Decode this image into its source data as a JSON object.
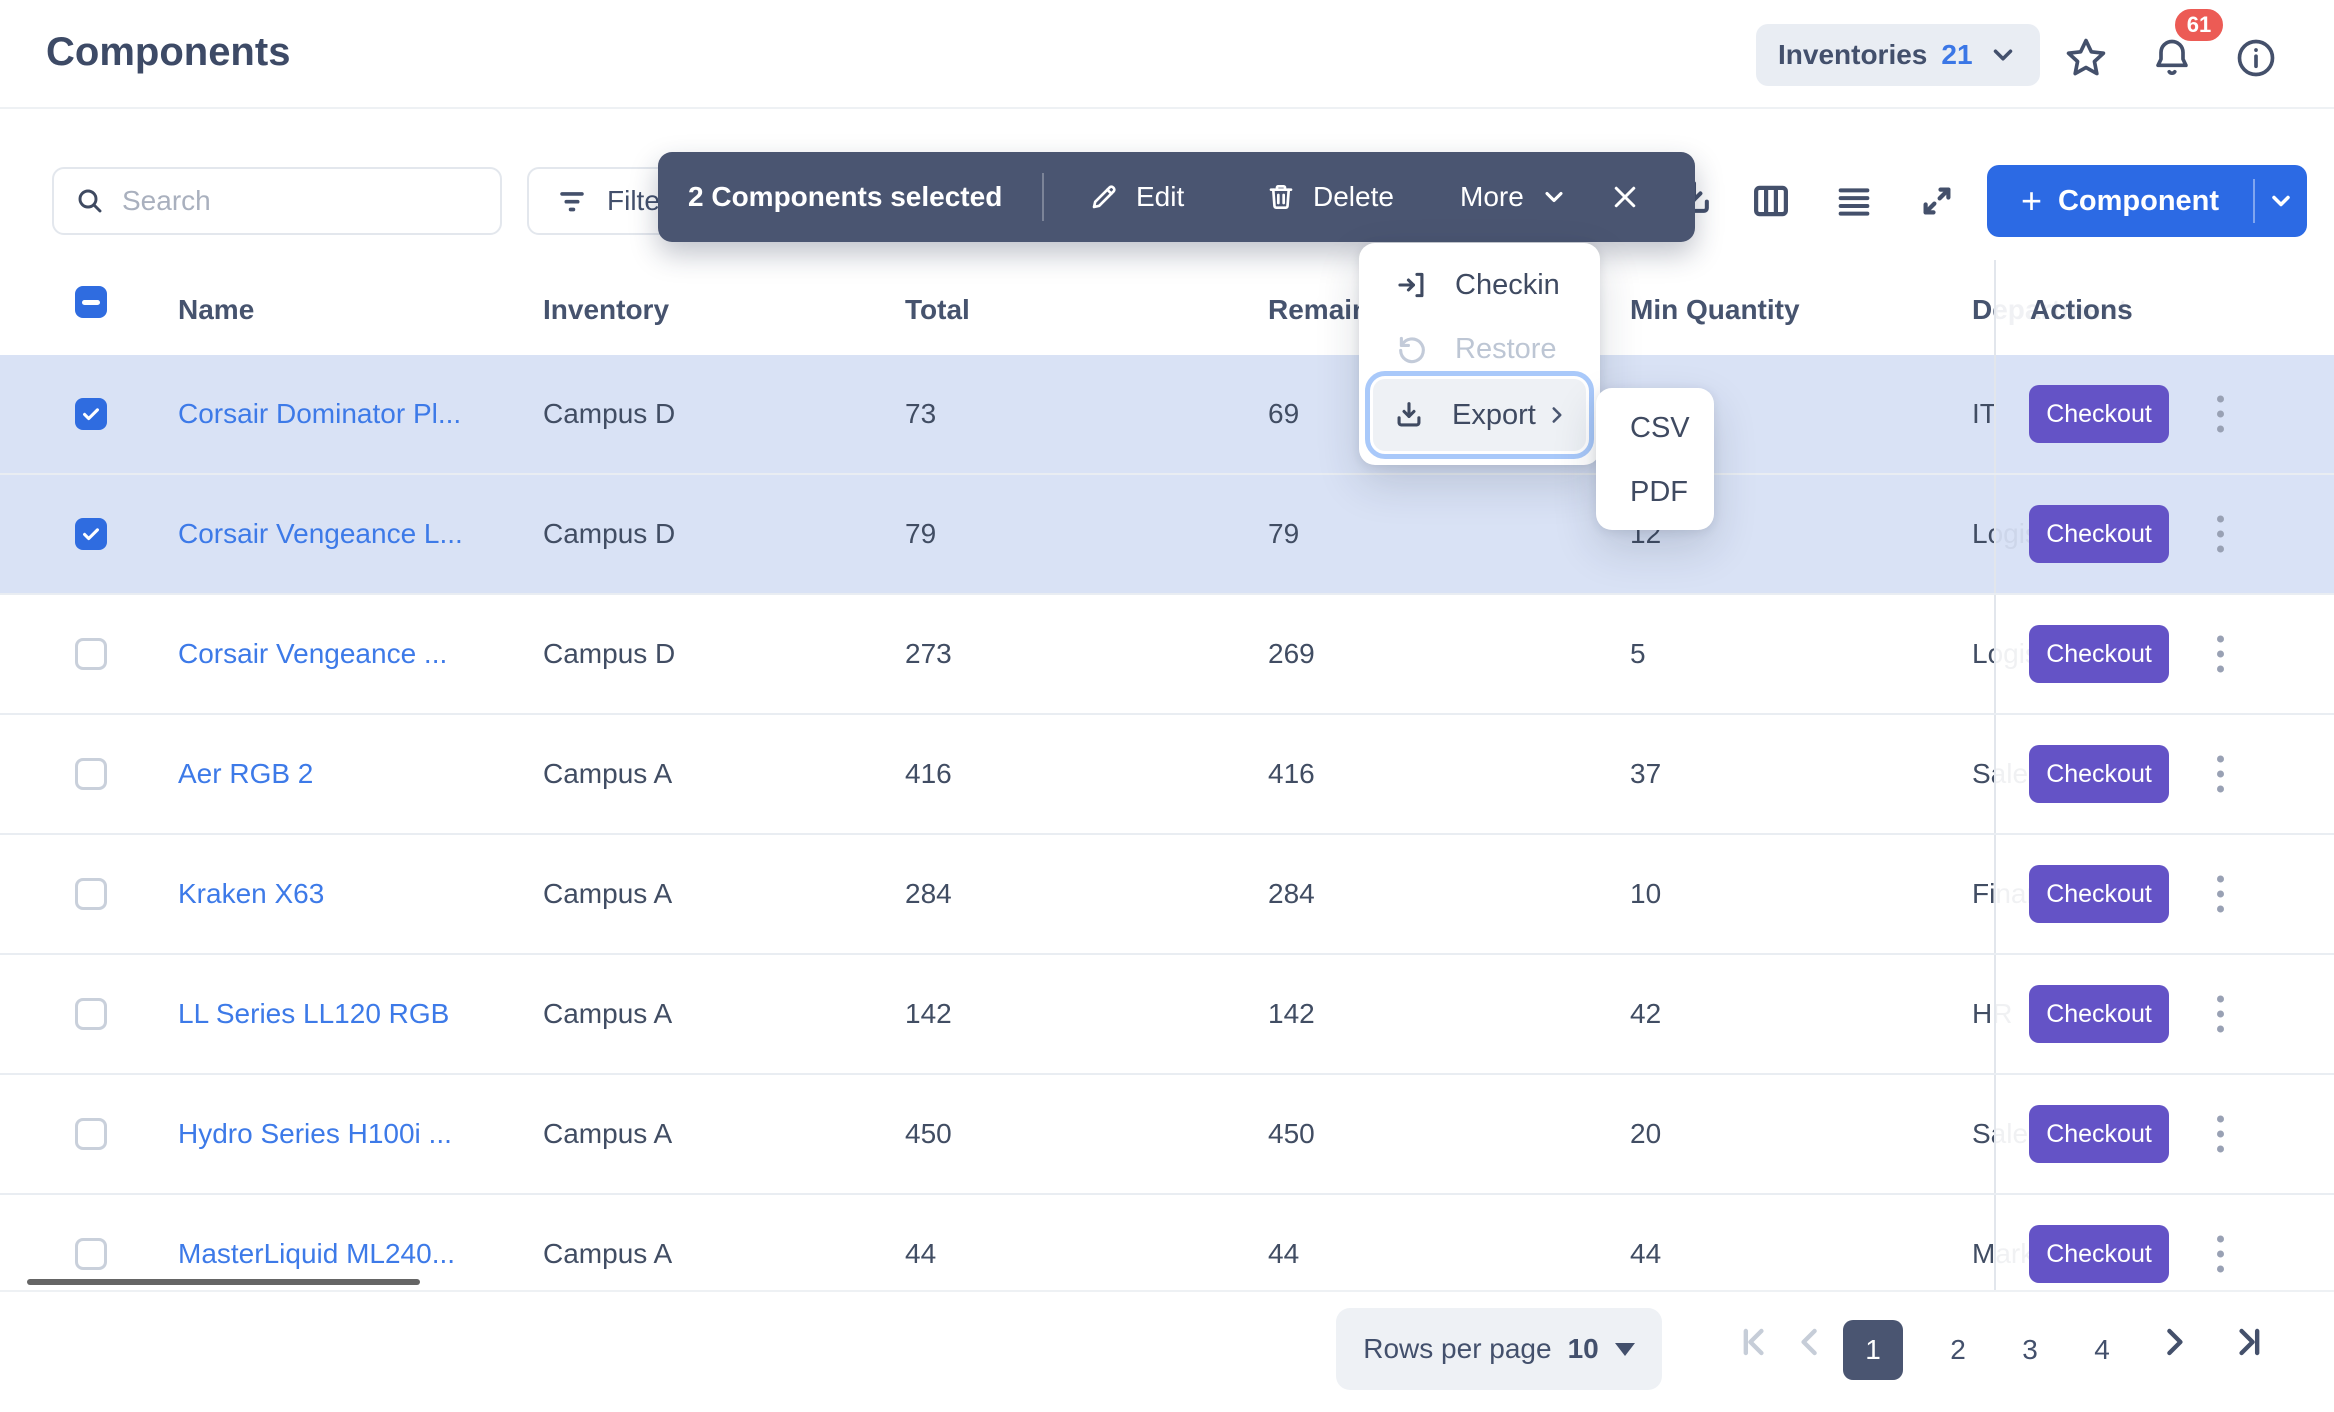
{
  "page": {
    "title": "Components"
  },
  "header": {
    "inventories": {
      "label": "Inventories",
      "count": "21"
    },
    "notification_count": "61"
  },
  "toolbar": {
    "search_placeholder": "Search",
    "filter_label": "Filter",
    "add_component_label": "Component"
  },
  "selection_toolbar": {
    "selected_text": "2 Components selected",
    "edit_label": "Edit",
    "delete_label": "Delete",
    "more_label": "More"
  },
  "more_menu": {
    "checkin_label": "Checkin",
    "restore_label": "Restore",
    "export_label": "Export",
    "submenu": {
      "csv": "CSV",
      "pdf": "PDF"
    }
  },
  "table": {
    "columns": [
      "Name",
      "Inventory",
      "Total",
      "Remaining",
      "Min Quantity",
      "Department",
      "Actions"
    ],
    "checkout_label": "Checkout",
    "rows": [
      {
        "name": "Corsair Dominator Pl...",
        "inventory": "Campus D",
        "total": "73",
        "remaining": "69",
        "min_quantity": "",
        "department": "IT",
        "selected": true
      },
      {
        "name": "Corsair Vengeance L...",
        "inventory": "Campus D",
        "total": "79",
        "remaining": "79",
        "min_quantity": "12",
        "department": "Logistics",
        "selected": true
      },
      {
        "name": "Corsair Vengeance ...",
        "inventory": "Campus D",
        "total": "273",
        "remaining": "269",
        "min_quantity": "5",
        "department": "Logistics",
        "selected": false
      },
      {
        "name": "Aer RGB 2",
        "inventory": "Campus A",
        "total": "416",
        "remaining": "416",
        "min_quantity": "37",
        "department": "Sales",
        "selected": false
      },
      {
        "name": "Kraken X63",
        "inventory": "Campus A",
        "total": "284",
        "remaining": "284",
        "min_quantity": "10",
        "department": "Finance",
        "selected": false
      },
      {
        "name": "LL Series LL120 RGB",
        "inventory": "Campus A",
        "total": "142",
        "remaining": "142",
        "min_quantity": "42",
        "department": "HR",
        "selected": false
      },
      {
        "name": "Hydro Series H100i ...",
        "inventory": "Campus A",
        "total": "450",
        "remaining": "450",
        "min_quantity": "20",
        "department": "Sales",
        "selected": false
      },
      {
        "name": "MasterLiquid ML240...",
        "inventory": "Campus A",
        "total": "44",
        "remaining": "44",
        "min_quantity": "44",
        "department": "Marketing",
        "selected": false
      }
    ]
  },
  "pagination": {
    "rows_per_page_label": "Rows per page",
    "rows_per_page_value": "10",
    "pages": [
      "1",
      "2",
      "3",
      "4"
    ],
    "active_page": "1"
  },
  "colors": {
    "accent_blue": "#2c6ae4",
    "link_blue": "#3d7ae8",
    "checkbox_blue": "#2f6ce0",
    "selected_row": "#d9e2f5",
    "toolbar_dark": "#4a5571",
    "checkout_purple": "#6453c6",
    "badge_red": "#ec5b55",
    "focus_ring": "#a9c9fa"
  }
}
